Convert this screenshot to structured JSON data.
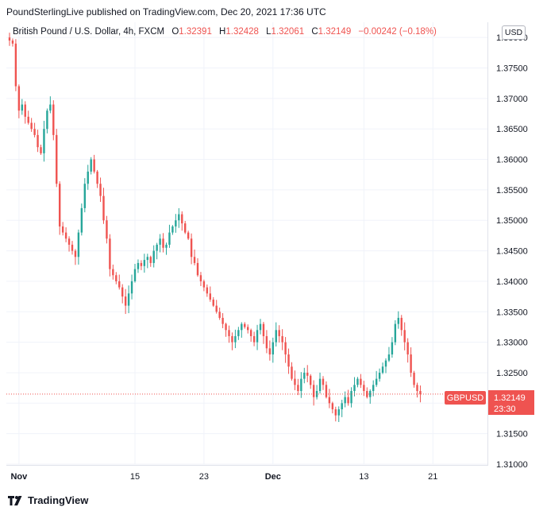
{
  "header": {
    "text": "PoundSterlingLive published on TradingView.com, Dec 20, 2021 17:36 UTC"
  },
  "legend": {
    "symbol": "British Pound / U.S. Dollar, 4h, FXCM",
    "open_label": "O",
    "open": "1.32391",
    "high_label": "H",
    "high": "1.32428",
    "low_label": "L",
    "low": "1.32061",
    "close_label": "C",
    "close": "1.32149",
    "change": "−0.00242 (−0.18%)"
  },
  "currency": "USD",
  "price_tag": {
    "symbol": "GBPUSD",
    "price": "1.32149",
    "countdown": "23:30",
    "color": "#ef5350"
  },
  "footer": {
    "brand": "TradingView"
  },
  "colors": {
    "up": "#26a69a",
    "down": "#ef5350",
    "grid": "#f0f3fa"
  },
  "chart_data": {
    "type": "candlestick",
    "ylim": [
      1.31,
      1.3825
    ],
    "y_ticks": [
      "1.38000",
      "1.37500",
      "1.37000",
      "1.36500",
      "1.36000",
      "1.35500",
      "1.35000",
      "1.34500",
      "1.34000",
      "1.33500",
      "1.33000",
      "1.32500",
      "1.32000",
      "1.31500",
      "1.31000"
    ],
    "x_ticks": [
      {
        "label": "Nov",
        "index": 3,
        "bold": true
      },
      {
        "label": "15",
        "index": 40,
        "bold": false
      },
      {
        "label": "23",
        "index": 62,
        "bold": false
      },
      {
        "label": "Dec",
        "index": 84,
        "bold": true
      },
      {
        "label": "13",
        "index": 113,
        "bold": false
      },
      {
        "label": "21",
        "index": 135,
        "bold": false
      }
    ],
    "close_series": [
      1.3795,
      1.379,
      1.372,
      1.368,
      1.369,
      1.367,
      1.366,
      1.365,
      1.364,
      1.362,
      1.361,
      1.365,
      1.368,
      1.369,
      1.364,
      1.356,
      1.349,
      1.348,
      1.347,
      1.346,
      1.345,
      1.344,
      1.348,
      1.352,
      1.356,
      1.358,
      1.36,
      1.358,
      1.356,
      1.354,
      1.35,
      1.347,
      1.342,
      1.341,
      1.34,
      1.339,
      1.3375,
      1.336,
      1.338,
      1.34,
      1.342,
      1.343,
      1.3425,
      1.3435,
      1.344,
      1.343,
      1.345,
      1.346,
      1.347,
      1.3455,
      1.346,
      1.348,
      1.349,
      1.35,
      1.351,
      1.3495,
      1.348,
      1.347,
      1.344,
      1.343,
      1.341,
      1.34,
      1.339,
      1.338,
      1.337,
      1.336,
      1.335,
      1.334,
      1.333,
      1.332,
      1.331,
      1.33,
      1.331,
      1.332,
      1.333,
      1.3325,
      1.332,
      1.331,
      1.33,
      1.332,
      1.333,
      1.331,
      1.329,
      1.328,
      1.33,
      1.332,
      1.331,
      1.33,
      1.328,
      1.326,
      1.324,
      1.323,
      1.322,
      1.324,
      1.325,
      1.3245,
      1.323,
      1.321,
      1.322,
      1.324,
      1.323,
      1.321,
      1.32,
      1.319,
      1.318,
      1.319,
      1.32,
      1.321,
      1.32,
      1.322,
      1.323,
      1.324,
      1.323,
      1.322,
      1.321,
      1.322,
      1.323,
      1.324,
      1.325,
      1.326,
      1.327,
      1.328,
      1.33,
      1.333,
      1.334,
      1.332,
      1.33,
      1.328,
      1.325,
      1.323,
      1.322,
      1.3215
    ],
    "current_price": 1.32149
  }
}
